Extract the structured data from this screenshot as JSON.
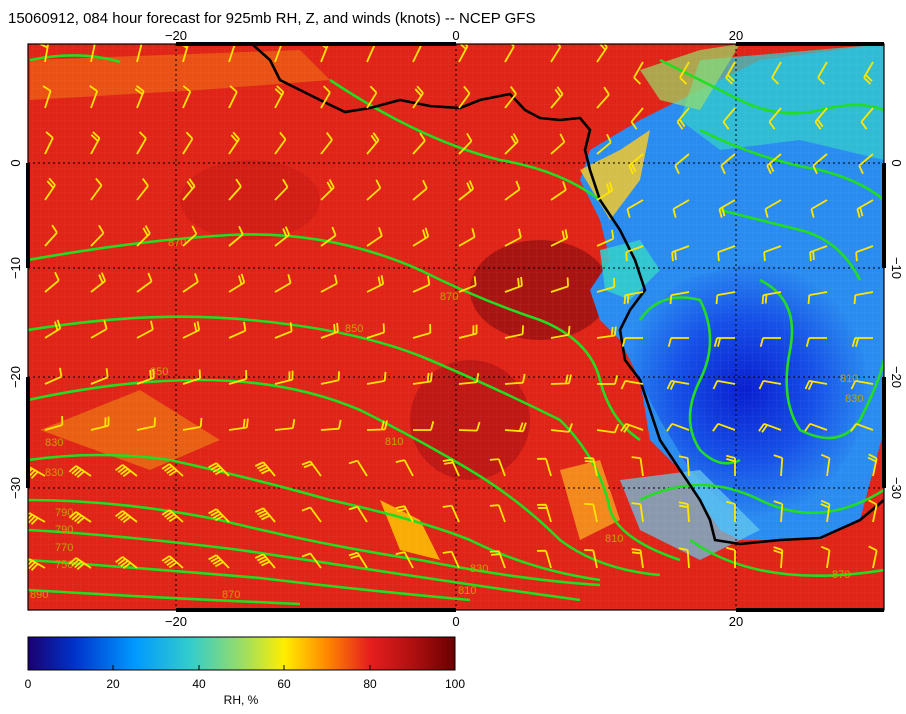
{
  "title": "15060912, 084 hour forecast for 925mb RH, Z, and winds (knots) -- NCEP GFS",
  "map": {
    "lon_ticks": [
      "−20",
      "0",
      "20"
    ],
    "lat_ticks": [
      "0",
      "−10",
      "−20",
      "−30"
    ],
    "contour_labels": [
      "870",
      "870",
      "850",
      "850",
      "830",
      "830",
      "810",
      "810",
      "790",
      "790",
      "770",
      "750",
      "830",
      "810",
      "870",
      "810",
      "830",
      "870",
      "890"
    ],
    "colors": {
      "coastline": "#000000",
      "contours": "#22dd22",
      "wind_barbs": "#ffe600",
      "frame": "#000000"
    }
  },
  "colorbar": {
    "ticks": [
      "0",
      "20",
      "40",
      "60",
      "80",
      "100"
    ],
    "label": "RH, %",
    "stops": [
      "#1a0070",
      "#0033cc",
      "#0099ff",
      "#33cccc",
      "#99dd66",
      "#ffee00",
      "#ff8800",
      "#e61e1e",
      "#b01010",
      "#6a0000"
    ]
  }
}
